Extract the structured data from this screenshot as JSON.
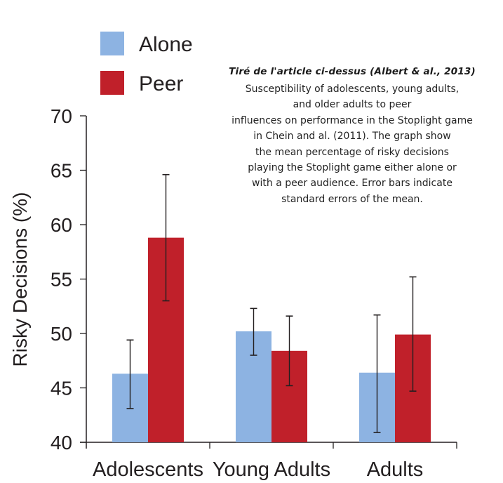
{
  "chart_data": {
    "type": "bar",
    "title": "",
    "xlabel": "",
    "ylabel": "Risky Decisions (%)",
    "ylim": [
      40,
      70
    ],
    "yticks": [
      40,
      45,
      50,
      55,
      60,
      65,
      70
    ],
    "grid": false,
    "legend_position": "top-left",
    "categories": [
      "Adolescents",
      "Young Adults",
      "Adults"
    ],
    "series": [
      {
        "name": "Alone",
        "color": "#8db3e2",
        "values": [
          46.3,
          50.2,
          46.4
        ],
        "error_low": [
          43.1,
          48.0,
          40.9
        ],
        "error_high": [
          49.4,
          52.3,
          51.7
        ]
      },
      {
        "name": "Peer",
        "color": "#c0202a",
        "values": [
          58.8,
          48.4,
          49.9
        ],
        "error_low": [
          53.0,
          45.2,
          44.7
        ],
        "error_high": [
          64.6,
          51.6,
          55.2
        ]
      }
    ]
  },
  "caption": {
    "title": "Tiré de l'article ci-dessus (Albert & al., 2013)",
    "lines": [
      "Susceptibility of adolescents, young adults,",
      "and older adults to peer",
      "influences on performance in the Stoplight game",
      "in Chein and al. (2011). The graph show",
      "the mean percentage of risky decisions",
      "playing the Stoplight game either alone or",
      "with a peer audience. Error bars indicate",
      "standard errors of the mean."
    ]
  }
}
